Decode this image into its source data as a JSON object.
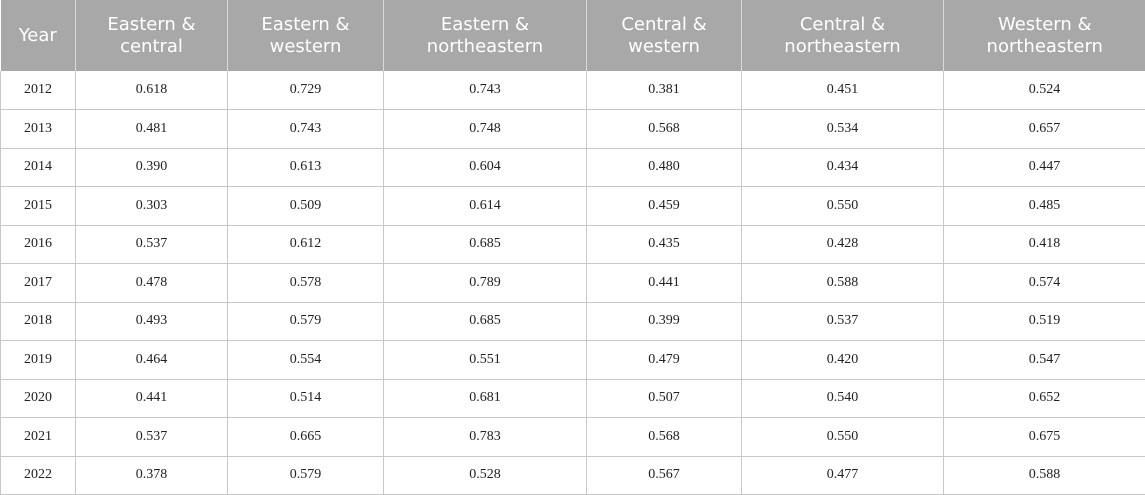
{
  "table": {
    "headers": [
      "Year",
      "Eastern & central",
      "Eastern & western",
      "Eastern & northeastern",
      "Central & western",
      "Central & northeastern",
      "Western & northeastern"
    ],
    "rows": [
      [
        "2012",
        "0.618",
        "0.729",
        "0.743",
        "0.381",
        "0.451",
        "0.524"
      ],
      [
        "2013",
        "0.481",
        "0.743",
        "0.748",
        "0.568",
        "0.534",
        "0.657"
      ],
      [
        "2014",
        "0.390",
        "0.613",
        "0.604",
        "0.480",
        "0.434",
        "0.447"
      ],
      [
        "2015",
        "0.303",
        "0.509",
        "0.614",
        "0.459",
        "0.550",
        "0.485"
      ],
      [
        "2016",
        "0.537",
        "0.612",
        "0.685",
        "0.435",
        "0.428",
        "0.418"
      ],
      [
        "2017",
        "0.478",
        "0.578",
        "0.789",
        "0.441",
        "0.588",
        "0.574"
      ],
      [
        "2018",
        "0.493",
        "0.579",
        "0.685",
        "0.399",
        "0.537",
        "0.519"
      ],
      [
        "2019",
        "0.464",
        "0.554",
        "0.551",
        "0.479",
        "0.420",
        "0.547"
      ],
      [
        "2020",
        "0.441",
        "0.514",
        "0.681",
        "0.507",
        "0.540",
        "0.652"
      ],
      [
        "2021",
        "0.537",
        "0.665",
        "0.783",
        "0.568",
        "0.550",
        "0.675"
      ],
      [
        "2022",
        "0.378",
        "0.579",
        "0.528",
        "0.567",
        "0.477",
        "0.588"
      ]
    ]
  },
  "colors": {
    "header_bg": "#a8a8a8",
    "header_text": "#ffffff",
    "grid": "#c8c8c8"
  }
}
